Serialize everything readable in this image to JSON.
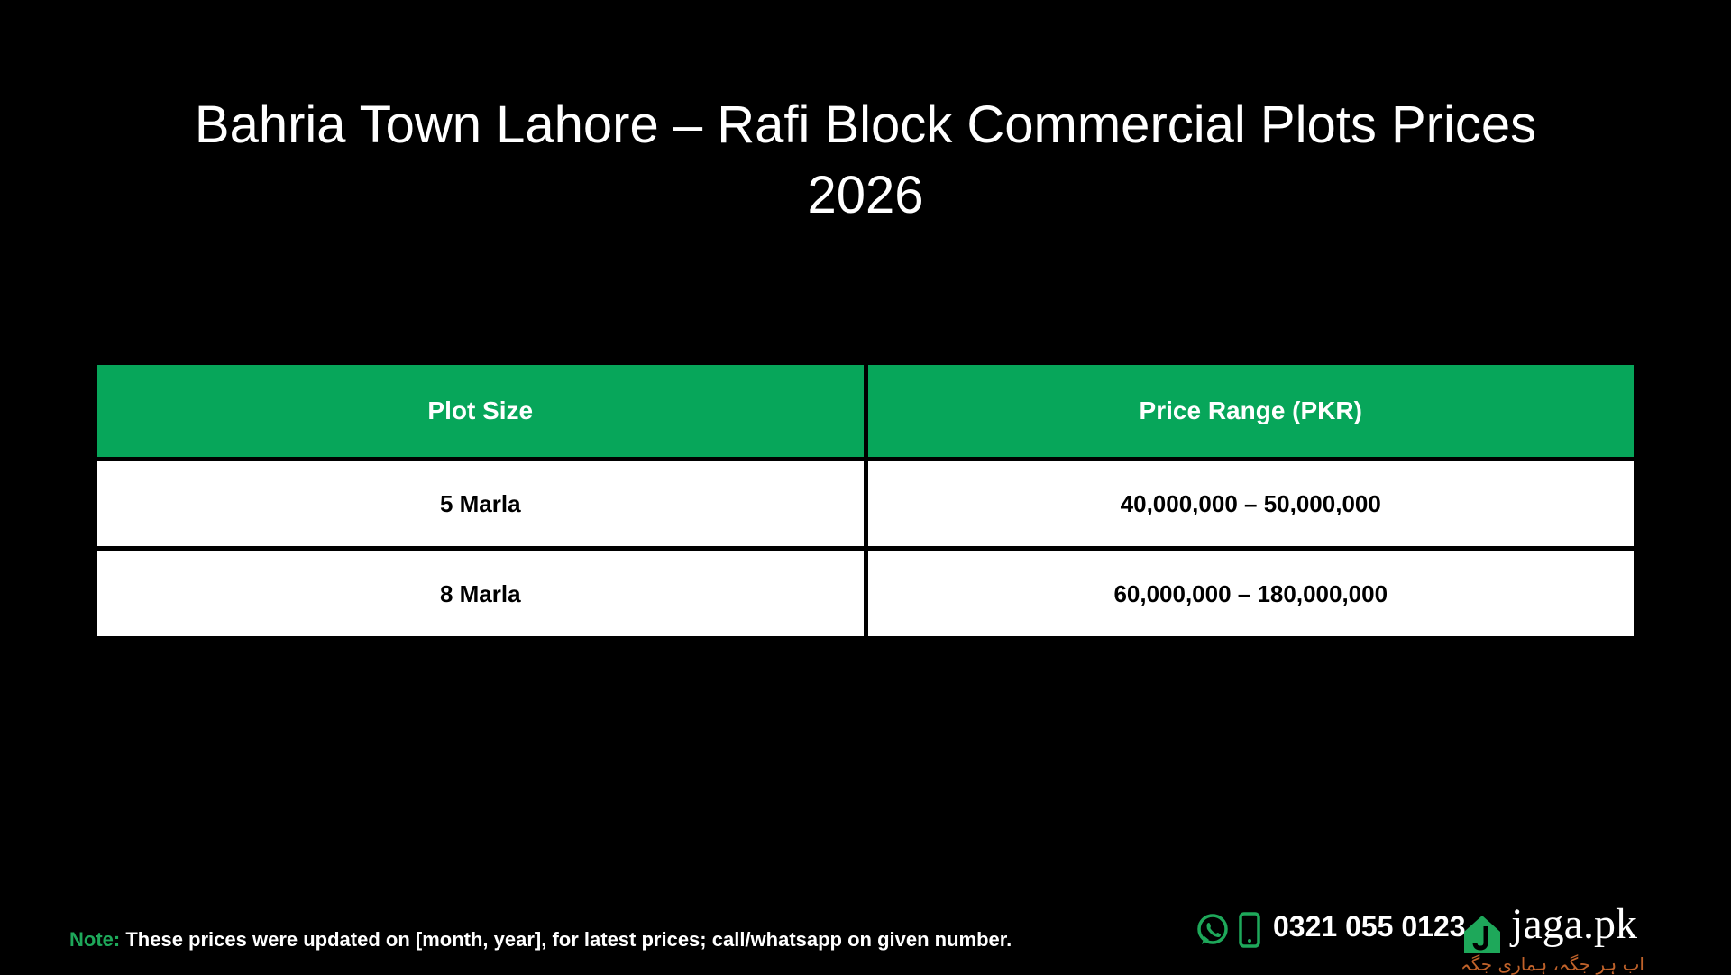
{
  "title": "Bahria Town Lahore – Rafi Block Commercial Plots Prices 2026",
  "table": {
    "header": [
      "Plot Size",
      "Price Range (PKR)"
    ],
    "rows": [
      [
        "5 Marla",
        "40,000,000 – 50,000,000"
      ],
      [
        "8 Marla",
        "60,000,000 – 180,000,000"
      ]
    ]
  },
  "footer": {
    "note_label": "Note:",
    "note": "These prices were updated on [month, year], for latest prices; call/whatsapp on given number.",
    "phone": "0321 055 0123",
    "brand": "jaga.pk",
    "tagline": "اب ہر جگہ، ہماری جگہ"
  }
}
